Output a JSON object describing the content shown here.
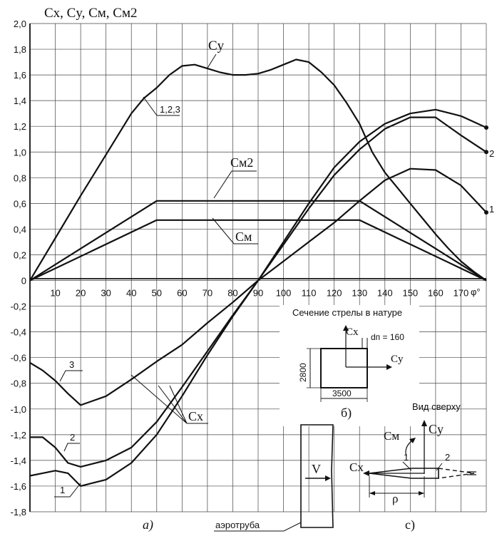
{
  "chart_data": {
    "type": "line",
    "title": "Cx, Cy, Cм, Cм2",
    "xlabel": "φ°",
    "xlim": [
      0,
      180
    ],
    "ylim": [
      -1.8,
      2.0
    ],
    "grid": true,
    "x_ticks": [
      "10",
      "20",
      "30",
      "40",
      "50",
      "60",
      "70",
      "80",
      "90",
      "100",
      "110",
      "120",
      "130",
      "140",
      "150",
      "160",
      "170"
    ],
    "y_ticks": [
      "2,0",
      "1,8",
      "1,6",
      "1,4",
      "1,2",
      "1,0",
      "0,8",
      "0,6",
      "0,4",
      "0,2",
      "0",
      "-0,2",
      "-0,4",
      "-0,6",
      "-0,8",
      "-1,0",
      "-1,2",
      "-1,4",
      "-1,6",
      "-1,8"
    ],
    "series": [
      {
        "name": "Cy",
        "x": [
          0,
          10,
          20,
          30,
          40,
          45,
          50,
          55,
          60,
          65,
          70,
          75,
          80,
          85,
          90,
          95,
          100,
          105,
          110,
          115,
          120,
          125,
          130,
          135,
          140,
          145,
          150,
          155,
          160,
          165,
          170,
          175,
          180
        ],
        "y": [
          0,
          0.33,
          0.66,
          0.98,
          1.3,
          1.42,
          1.5,
          1.6,
          1.67,
          1.68,
          1.65,
          1.62,
          1.6,
          1.6,
          1.61,
          1.64,
          1.68,
          1.72,
          1.7,
          1.62,
          1.52,
          1.38,
          1.22,
          1.0,
          0.84,
          0.72,
          0.6,
          0.48,
          0.36,
          0.25,
          0.15,
          0.07,
          0
        ]
      },
      {
        "name": "Cм2",
        "x": [
          0,
          50,
          130,
          180
        ],
        "y": [
          0,
          0.62,
          0.62,
          0
        ]
      },
      {
        "name": "Cм",
        "x": [
          0,
          50,
          130,
          180
        ],
        "y": [
          0,
          0.47,
          0.47,
          0
        ]
      },
      {
        "name": "Cx 1",
        "x": [
          0,
          5,
          10,
          15,
          20,
          30,
          40,
          50,
          60,
          70,
          80,
          90,
          100,
          110,
          120,
          130,
          140,
          150,
          160,
          170,
          180
        ],
        "y": [
          -1.52,
          -1.5,
          -1.48,
          -1.5,
          -1.6,
          -1.55,
          -1.42,
          -1.2,
          -0.9,
          -0.58,
          -0.28,
          0.0,
          0.28,
          0.56,
          0.82,
          1.02,
          1.18,
          1.27,
          1.27,
          1.13,
          1.0
        ]
      },
      {
        "name": "Cx 2",
        "x": [
          0,
          5,
          10,
          15,
          20,
          30,
          40,
          50,
          60,
          70,
          80,
          90,
          100,
          110,
          120,
          130,
          140,
          150,
          160,
          170,
          180
        ],
        "y": [
          -1.22,
          -1.22,
          -1.3,
          -1.42,
          -1.45,
          -1.4,
          -1.3,
          -1.1,
          -0.83,
          -0.55,
          -0.27,
          0.0,
          0.3,
          0.6,
          0.88,
          1.08,
          1.22,
          1.3,
          1.33,
          1.28,
          1.19
        ]
      },
      {
        "name": "Cx 3",
        "x": [
          0,
          5,
          10,
          15,
          20,
          30,
          40,
          50,
          60,
          70,
          80,
          90,
          100,
          110,
          120,
          130,
          140,
          150,
          160,
          170,
          180
        ],
        "y": [
          -0.64,
          -0.7,
          -0.78,
          -0.88,
          -0.97,
          -0.9,
          -0.77,
          -0.63,
          -0.5,
          -0.33,
          -0.17,
          0.0,
          0.15,
          0.3,
          0.45,
          0.62,
          0.78,
          0.87,
          0.86,
          0.74,
          0.53
        ]
      }
    ]
  },
  "labels": {
    "cy": "Cу",
    "cm2": "Cм2",
    "cm": "Cм",
    "cx": "Cx",
    "group": "1,2,3",
    "curve1": "1",
    "curve2": "2",
    "curve3": "3",
    "right_trunc": "2",
    "right_trunc2": "1",
    "panel_a": "а)",
    "panel_b": "б)",
    "panel_c": "с)",
    "section_title": "Сечение стрелы в натуре",
    "sec_cx": "Cx",
    "sec_cy": "Cу",
    "sec_dn": "dп = 160",
    "sec_h": "2800",
    "sec_w": "3500",
    "top_view": "Вид сверху",
    "tv_cy": "Cу",
    "tv_cm": "Cм",
    "tv_cx": "Cx",
    "tv_1": "1",
    "tv_2": "2",
    "tv_rho": "ρ",
    "wind_v": "V",
    "wind_tunnel": "аэротруба"
  }
}
